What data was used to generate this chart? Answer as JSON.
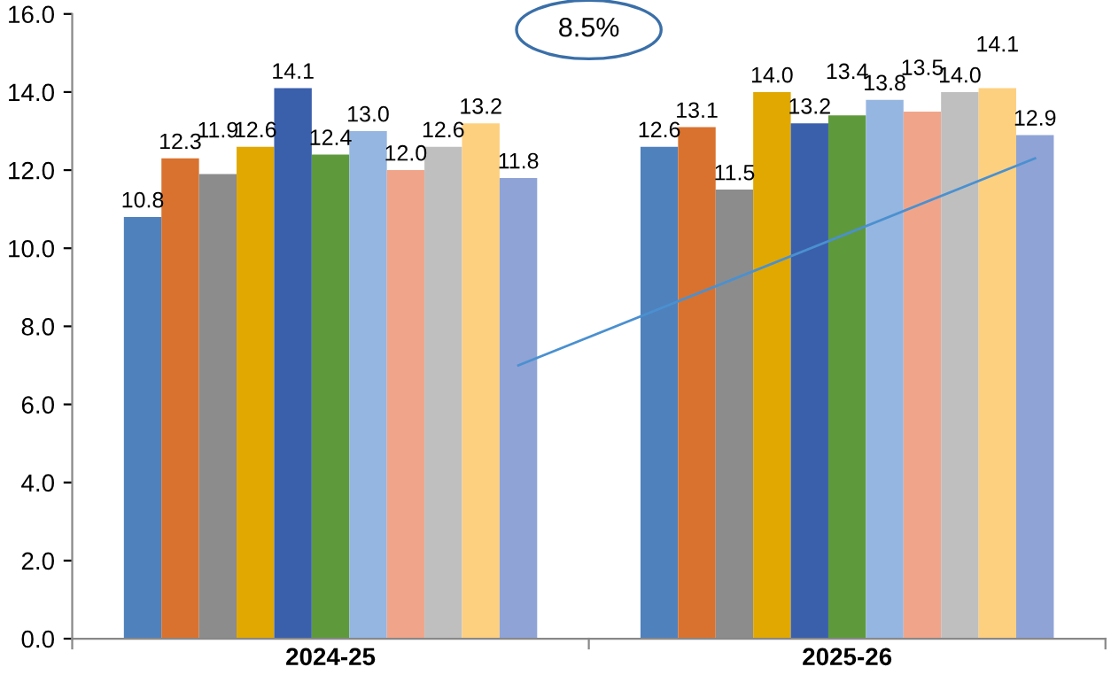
{
  "chart_data": {
    "type": "bar",
    "categories": [
      "2024-25",
      "2025-26"
    ],
    "series": [
      {
        "color": "#4f81bd",
        "values": [
          10.8,
          12.6
        ],
        "value_labels": [
          "10.8",
          "12.6"
        ]
      },
      {
        "color": "#d9722e",
        "values": [
          12.3,
          13.1
        ],
        "value_labels": [
          "12.3",
          "13.1"
        ]
      },
      {
        "color": "#8c8c8c",
        "values": [
          11.9,
          11.5
        ],
        "value_labels": [
          "11.9",
          "11.5"
        ]
      },
      {
        "color": "#e0a800",
        "values": [
          12.6,
          14.0
        ],
        "value_labels": [
          "12.6",
          "14.0"
        ]
      },
      {
        "color": "#3a5fab",
        "values": [
          14.1,
          13.2
        ],
        "value_labels": [
          "14.1",
          "13.2"
        ]
      },
      {
        "color": "#5e9a3c",
        "values": [
          12.4,
          13.4
        ],
        "value_labels": [
          "12.4",
          "13.4"
        ]
      },
      {
        "color": "#95b6e0",
        "values": [
          13.0,
          13.8
        ],
        "value_labels": [
          "13.0",
          "13.8"
        ]
      },
      {
        "color": "#f0a58a",
        "values": [
          12.0,
          13.5
        ],
        "value_labels": [
          "12.0",
          "13.5"
        ]
      },
      {
        "color": "#bfbfbf",
        "values": [
          12.6,
          14.0
        ],
        "value_labels": [
          "12.6",
          "14.0"
        ]
      },
      {
        "color": "#fdd080",
        "values": [
          13.2,
          14.1
        ],
        "value_labels": [
          "13.2",
          "14.1"
        ]
      },
      {
        "color": "#8fa3d6",
        "values": [
          11.8,
          12.9
        ],
        "value_labels": [
          "11.8",
          "12.9"
        ]
      },
      {
        "type": "line",
        "color": "#4a90d0",
        "values": [
          7.0,
          12.3
        ]
      }
    ],
    "ylim": [
      0,
      16
    ],
    "yticks": [
      {
        "value": 0,
        "label": "0.0"
      },
      {
        "value": 2,
        "label": "2.0"
      },
      {
        "value": 4,
        "label": "4.0"
      },
      {
        "value": 6,
        "label": "6.0"
      },
      {
        "value": 8,
        "label": "8.0"
      },
      {
        "value": 10,
        "label": "10.0"
      },
      {
        "value": 12,
        "label": "12.0"
      },
      {
        "value": 14,
        "label": "14.0"
      },
      {
        "value": 16,
        "label": "16.0"
      }
    ],
    "grid": false,
    "legend": false,
    "annotations": [
      "8.5%"
    ]
  }
}
